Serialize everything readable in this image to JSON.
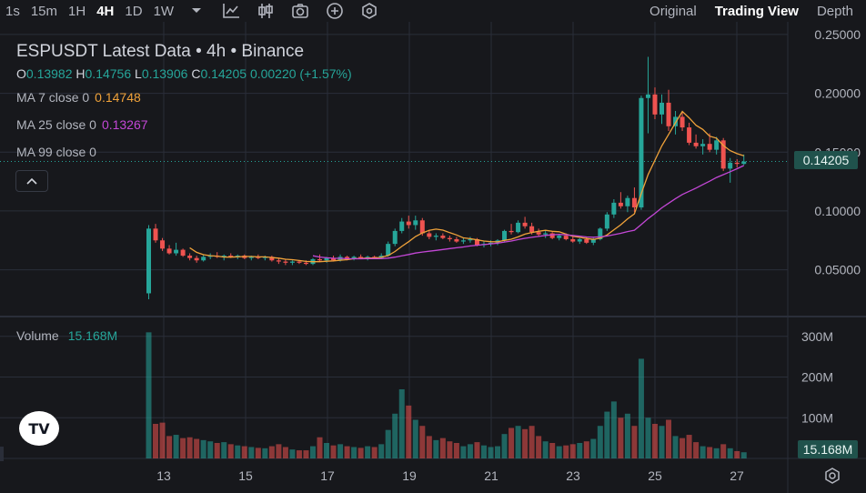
{
  "toolbar": {
    "timeframes": [
      "1s",
      "15m",
      "1H",
      "4H",
      "1D",
      "1W"
    ],
    "active_timeframe": "4H",
    "icons": [
      "chevron-down-icon",
      "line-chart-icon",
      "candlestick-icon",
      "camera-icon",
      "plus-circle-icon",
      "hexagon-settings-icon"
    ],
    "views": [
      "Original",
      "Trading View",
      "Depth"
    ],
    "active_view": "Trading View"
  },
  "legend": {
    "title": "ESPUSDT Latest Data • 4h • Binance",
    "o_label": "O",
    "o_value": "0.13982",
    "h_label": "H",
    "h_value": "0.14756",
    "l_label": "L",
    "l_value": "0.13906",
    "c_label": "C",
    "c_value": "0.14205",
    "change": "0.00220 (+1.57%)",
    "ma7_label": "MA 7 close 0",
    "ma7_value": "0.14748",
    "ma7_color": "#f0a23a",
    "ma25_label": "MA 25 close 0",
    "ma25_value": "0.13267",
    "ma25_color": "#c347d6",
    "ma99_label": "MA 99 close 0"
  },
  "volume_legend": {
    "label": "Volume",
    "value": "15.168M"
  },
  "price_badge": "0.14205",
  "volume_badge": "15.168M",
  "logo_text": "TV",
  "colors": {
    "up": "#26a69a",
    "down": "#ef5350",
    "background": "#17181c",
    "grid": "#2a2e39"
  },
  "chart_data": {
    "type": "candlestick",
    "price_axis_ticks": [
      "0.25000",
      "0.20000",
      "0.15000",
      "0.10000",
      "0.05000"
    ],
    "price_axis_values": [
      0.25,
      0.2,
      0.15,
      0.1,
      0.05
    ],
    "volume_axis_ticks": [
      "300M",
      "200M",
      "100M"
    ],
    "volume_axis_values": [
      300,
      200,
      100
    ],
    "x_ticks": [
      "13",
      "15",
      "17",
      "19",
      "21",
      "23",
      "25",
      "27"
    ],
    "last_price": 0.14205,
    "candles": [
      [
        0.03,
        0.088,
        0.025,
        0.085,
        310
      ],
      [
        0.085,
        0.089,
        0.073,
        0.075,
        85
      ],
      [
        0.075,
        0.077,
        0.066,
        0.068,
        88
      ],
      [
        0.068,
        0.071,
        0.063,
        0.064,
        55
      ],
      [
        0.064,
        0.073,
        0.062,
        0.067,
        58
      ],
      [
        0.067,
        0.068,
        0.061,
        0.062,
        50
      ],
      [
        0.062,
        0.064,
        0.058,
        0.06,
        52
      ],
      [
        0.06,
        0.062,
        0.056,
        0.058,
        48
      ],
      [
        0.058,
        0.063,
        0.057,
        0.061,
        45
      ],
      [
        0.061,
        0.064,
        0.059,
        0.062,
        42
      ],
      [
        0.062,
        0.065,
        0.06,
        0.061,
        38
      ],
      [
        0.061,
        0.063,
        0.058,
        0.062,
        40
      ],
      [
        0.062,
        0.064,
        0.06,
        0.061,
        35
      ],
      [
        0.061,
        0.063,
        0.059,
        0.062,
        32
      ],
      [
        0.062,
        0.063,
        0.059,
        0.06,
        30
      ],
      [
        0.06,
        0.062,
        0.058,
        0.061,
        28
      ],
      [
        0.061,
        0.063,
        0.059,
        0.06,
        26
      ],
      [
        0.06,
        0.062,
        0.058,
        0.061,
        25
      ],
      [
        0.061,
        0.062,
        0.057,
        0.058,
        30
      ],
      [
        0.058,
        0.06,
        0.055,
        0.057,
        35
      ],
      [
        0.057,
        0.059,
        0.054,
        0.056,
        28
      ],
      [
        0.056,
        0.058,
        0.054,
        0.057,
        22
      ],
      [
        0.057,
        0.058,
        0.055,
        0.056,
        20
      ],
      [
        0.056,
        0.058,
        0.054,
        0.055,
        20
      ],
      [
        0.055,
        0.06,
        0.054,
        0.059,
        30
      ],
      [
        0.059,
        0.063,
        0.057,
        0.058,
        52
      ],
      [
        0.058,
        0.061,
        0.056,
        0.06,
        38
      ],
      [
        0.06,
        0.062,
        0.057,
        0.058,
        32
      ],
      [
        0.058,
        0.063,
        0.057,
        0.061,
        35
      ],
      [
        0.061,
        0.062,
        0.058,
        0.059,
        30
      ],
      [
        0.059,
        0.062,
        0.058,
        0.061,
        28
      ],
      [
        0.061,
        0.063,
        0.059,
        0.06,
        26
      ],
      [
        0.06,
        0.062,
        0.058,
        0.061,
        30
      ],
      [
        0.061,
        0.062,
        0.059,
        0.06,
        28
      ],
      [
        0.06,
        0.064,
        0.059,
        0.062,
        35
      ],
      [
        0.062,
        0.074,
        0.061,
        0.072,
        70
      ],
      [
        0.072,
        0.085,
        0.07,
        0.083,
        110
      ],
      [
        0.083,
        0.094,
        0.081,
        0.091,
        170
      ],
      [
        0.091,
        0.096,
        0.085,
        0.088,
        130
      ],
      [
        0.088,
        0.096,
        0.084,
        0.092,
        95
      ],
      [
        0.092,
        0.094,
        0.079,
        0.081,
        80
      ],
      [
        0.081,
        0.084,
        0.076,
        0.078,
        55
      ],
      [
        0.078,
        0.081,
        0.075,
        0.079,
        45
      ],
      [
        0.079,
        0.081,
        0.076,
        0.077,
        50
      ],
      [
        0.077,
        0.079,
        0.074,
        0.076,
        42
      ],
      [
        0.076,
        0.078,
        0.073,
        0.074,
        38
      ],
      [
        0.074,
        0.077,
        0.072,
        0.075,
        30
      ],
      [
        0.075,
        0.078,
        0.073,
        0.076,
        35
      ],
      [
        0.076,
        0.077,
        0.07,
        0.071,
        40
      ],
      [
        0.071,
        0.074,
        0.069,
        0.072,
        32
      ],
      [
        0.072,
        0.075,
        0.07,
        0.073,
        28
      ],
      [
        0.073,
        0.076,
        0.071,
        0.075,
        30
      ],
      [
        0.075,
        0.084,
        0.074,
        0.083,
        60
      ],
      [
        0.083,
        0.089,
        0.08,
        0.082,
        75
      ],
      [
        0.082,
        0.092,
        0.081,
        0.09,
        80
      ],
      [
        0.09,
        0.095,
        0.085,
        0.087,
        72
      ],
      [
        0.087,
        0.09,
        0.08,
        0.082,
        80
      ],
      [
        0.082,
        0.085,
        0.078,
        0.08,
        55
      ],
      [
        0.08,
        0.083,
        0.077,
        0.081,
        42
      ],
      [
        0.081,
        0.082,
        0.076,
        0.077,
        38
      ],
      [
        0.077,
        0.08,
        0.075,
        0.079,
        30
      ],
      [
        0.079,
        0.081,
        0.075,
        0.076,
        32
      ],
      [
        0.076,
        0.078,
        0.073,
        0.074,
        35
      ],
      [
        0.074,
        0.077,
        0.072,
        0.076,
        38
      ],
      [
        0.076,
        0.078,
        0.072,
        0.073,
        42
      ],
      [
        0.073,
        0.077,
        0.071,
        0.076,
        48
      ],
      [
        0.076,
        0.086,
        0.075,
        0.085,
        80
      ],
      [
        0.085,
        0.099,
        0.083,
        0.097,
        115
      ],
      [
        0.097,
        0.11,
        0.094,
        0.107,
        140
      ],
      [
        0.107,
        0.116,
        0.102,
        0.104,
        100
      ],
      [
        0.104,
        0.113,
        0.099,
        0.111,
        110
      ],
      [
        0.111,
        0.12,
        0.099,
        0.103,
        80
      ],
      [
        0.103,
        0.198,
        0.101,
        0.196,
        245
      ],
      [
        0.196,
        0.231,
        0.166,
        0.199,
        100
      ],
      [
        0.199,
        0.205,
        0.178,
        0.182,
        85
      ],
      [
        0.182,
        0.199,
        0.174,
        0.192,
        80
      ],
      [
        0.192,
        0.203,
        0.168,
        0.172,
        95
      ],
      [
        0.172,
        0.185,
        0.165,
        0.18,
        55
      ],
      [
        0.18,
        0.184,
        0.168,
        0.171,
        50
      ],
      [
        0.171,
        0.175,
        0.156,
        0.158,
        58
      ],
      [
        0.158,
        0.165,
        0.153,
        0.155,
        40
      ],
      [
        0.155,
        0.161,
        0.148,
        0.157,
        30
      ],
      [
        0.157,
        0.166,
        0.15,
        0.152,
        28
      ],
      [
        0.152,
        0.163,
        0.148,
        0.16,
        25
      ],
      [
        0.16,
        0.162,
        0.134,
        0.136,
        35
      ],
      [
        0.136,
        0.145,
        0.124,
        0.141,
        25
      ],
      [
        0.141,
        0.144,
        0.137,
        0.14,
        18
      ],
      [
        0.14,
        0.148,
        0.139,
        0.142,
        15.168
      ]
    ]
  }
}
